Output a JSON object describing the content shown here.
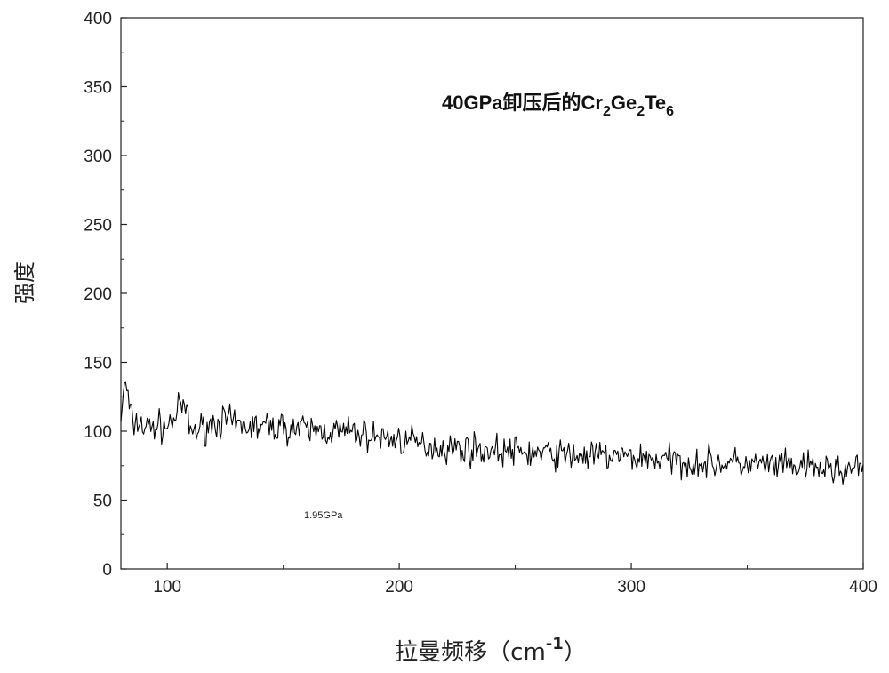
{
  "chart_data": {
    "type": "line",
    "title": "",
    "xlabel_main": "拉曼频移（cm",
    "xlabel_sup": "-1",
    "xlabel_close": "）",
    "ylabel": "强度",
    "xlim": [
      80,
      400
    ],
    "ylim": [
      0,
      400
    ],
    "x_ticks": [
      100,
      200,
      300,
      400
    ],
    "y_ticks": [
      0,
      50,
      100,
      150,
      200,
      250,
      300,
      350,
      400
    ],
    "grid": false,
    "annotation_title": {
      "parts": [
        {
          "text": "40GPa卸压后的Cr",
          "sub": false
        },
        {
          "text": "2",
          "sub": true
        },
        {
          "text": "Ge",
          "sub": false
        },
        {
          "text": "2",
          "sub": true
        },
        {
          "text": "Te",
          "sub": false
        },
        {
          "text": "6",
          "sub": true
        }
      ]
    },
    "annotation_small": "1.95GPa",
    "series": [
      {
        "line_color": "#000000",
        "x": [
          80,
          82,
          84,
          86,
          88,
          90,
          95,
          100,
          105,
          107,
          110,
          115,
          120,
          125,
          130,
          140,
          150,
          160,
          170,
          180,
          190,
          200,
          210,
          220,
          230,
          240,
          250,
          260,
          270,
          280,
          290,
          300,
          310,
          320,
          330,
          340,
          350,
          360,
          370,
          380,
          390,
          400
        ],
        "y": [
          110,
          137,
          112,
          104,
          108,
          102,
          104,
          103,
          115,
          120,
          100,
          102,
          106,
          108,
          104,
          103,
          103,
          101,
          100,
          99,
          96,
          94,
          90,
          88,
          87,
          86,
          85,
          84,
          83,
          82,
          82,
          81,
          80,
          78,
          77,
          77,
          76,
          75,
          74,
          73,
          72,
          73
        ]
      }
    ]
  }
}
